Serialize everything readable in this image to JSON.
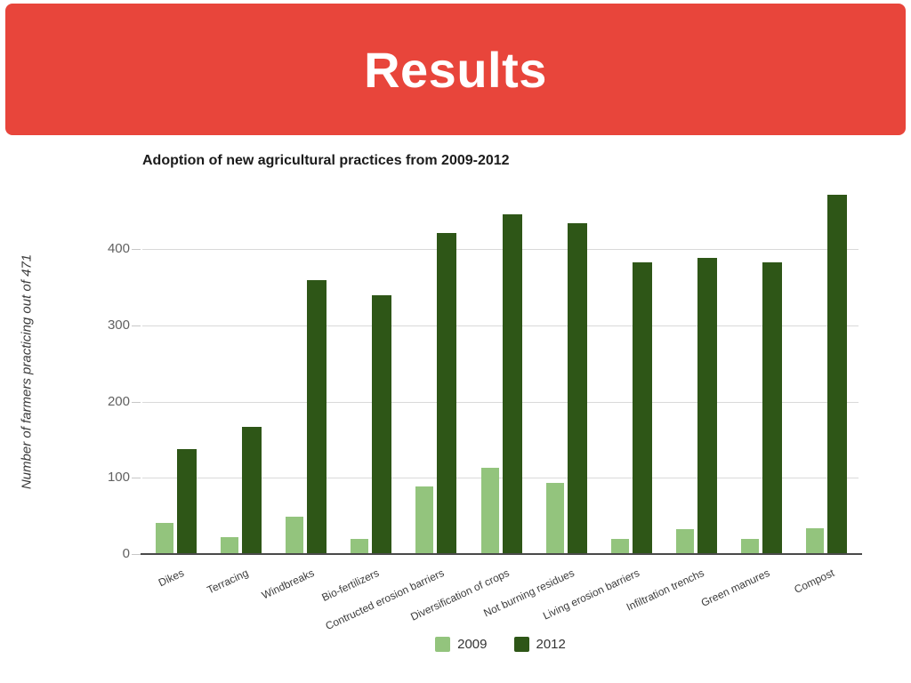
{
  "slide": {
    "title": "Results",
    "banner_color": "#e8453b"
  },
  "chart_data": {
    "type": "bar",
    "title": "Adoption of new agricultural practices from 2009-2012",
    "xlabel": "",
    "ylabel": "Number of farmers practicing out of 471",
    "categories": [
      "Dikes",
      "Terracing",
      "Windbreaks",
      "Bio-fertilizers",
      "Contructed erosion barriers",
      "Diversification of crops",
      "Not burning residues",
      "Living erosion barriers",
      "Infiltration trenchs",
      "Green manures",
      "Compost"
    ],
    "series": [
      {
        "name": "2009",
        "color": "#93c47d",
        "values": [
          40,
          21,
          48,
          19,
          88,
          112,
          92,
          19,
          31,
          19,
          33
        ]
      },
      {
        "name": "2012",
        "color": "#2e5617",
        "values": [
          136,
          166,
          358,
          339,
          420,
          445,
          433,
          382,
          387,
          382,
          470
        ]
      }
    ],
    "yticks": [
      0,
      100,
      200,
      300,
      400
    ],
    "ylim": [
      0,
      480
    ],
    "grid": true,
    "legend_position": "bottom",
    "gridline_color": "#d9d9d9",
    "axis_color": "#4a4a4a",
    "tick_label_color": "#616161",
    "category_label_color": "#3c3c3c"
  }
}
